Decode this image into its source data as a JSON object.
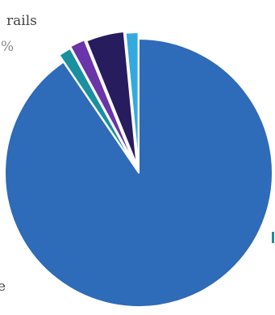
{
  "chart_data": {
    "type": "pie",
    "exploded": true,
    "start_angle_deg": 0,
    "direction": "clockwise",
    "slices": [
      {
        "value": 88.6,
        "color": "#2e6bb8",
        "explode": 0
      },
      {
        "value": 1.5,
        "color": "#1a8fa0",
        "explode": 10
      },
      {
        "value": 1.8,
        "color": "#6a35a8",
        "explode": 12
      },
      {
        "value": 4.5,
        "color": "#271c5e",
        "explode": 10
      },
      {
        "value": 1.5,
        "color": "#33a9e0",
        "explode": 8
      }
    ],
    "visible_text": [
      {
        "text": "rails",
        "style": "dark"
      },
      {
        "text": "%",
        "style": "light"
      },
      {
        "text": "e",
        "style": "dark"
      }
    ]
  }
}
